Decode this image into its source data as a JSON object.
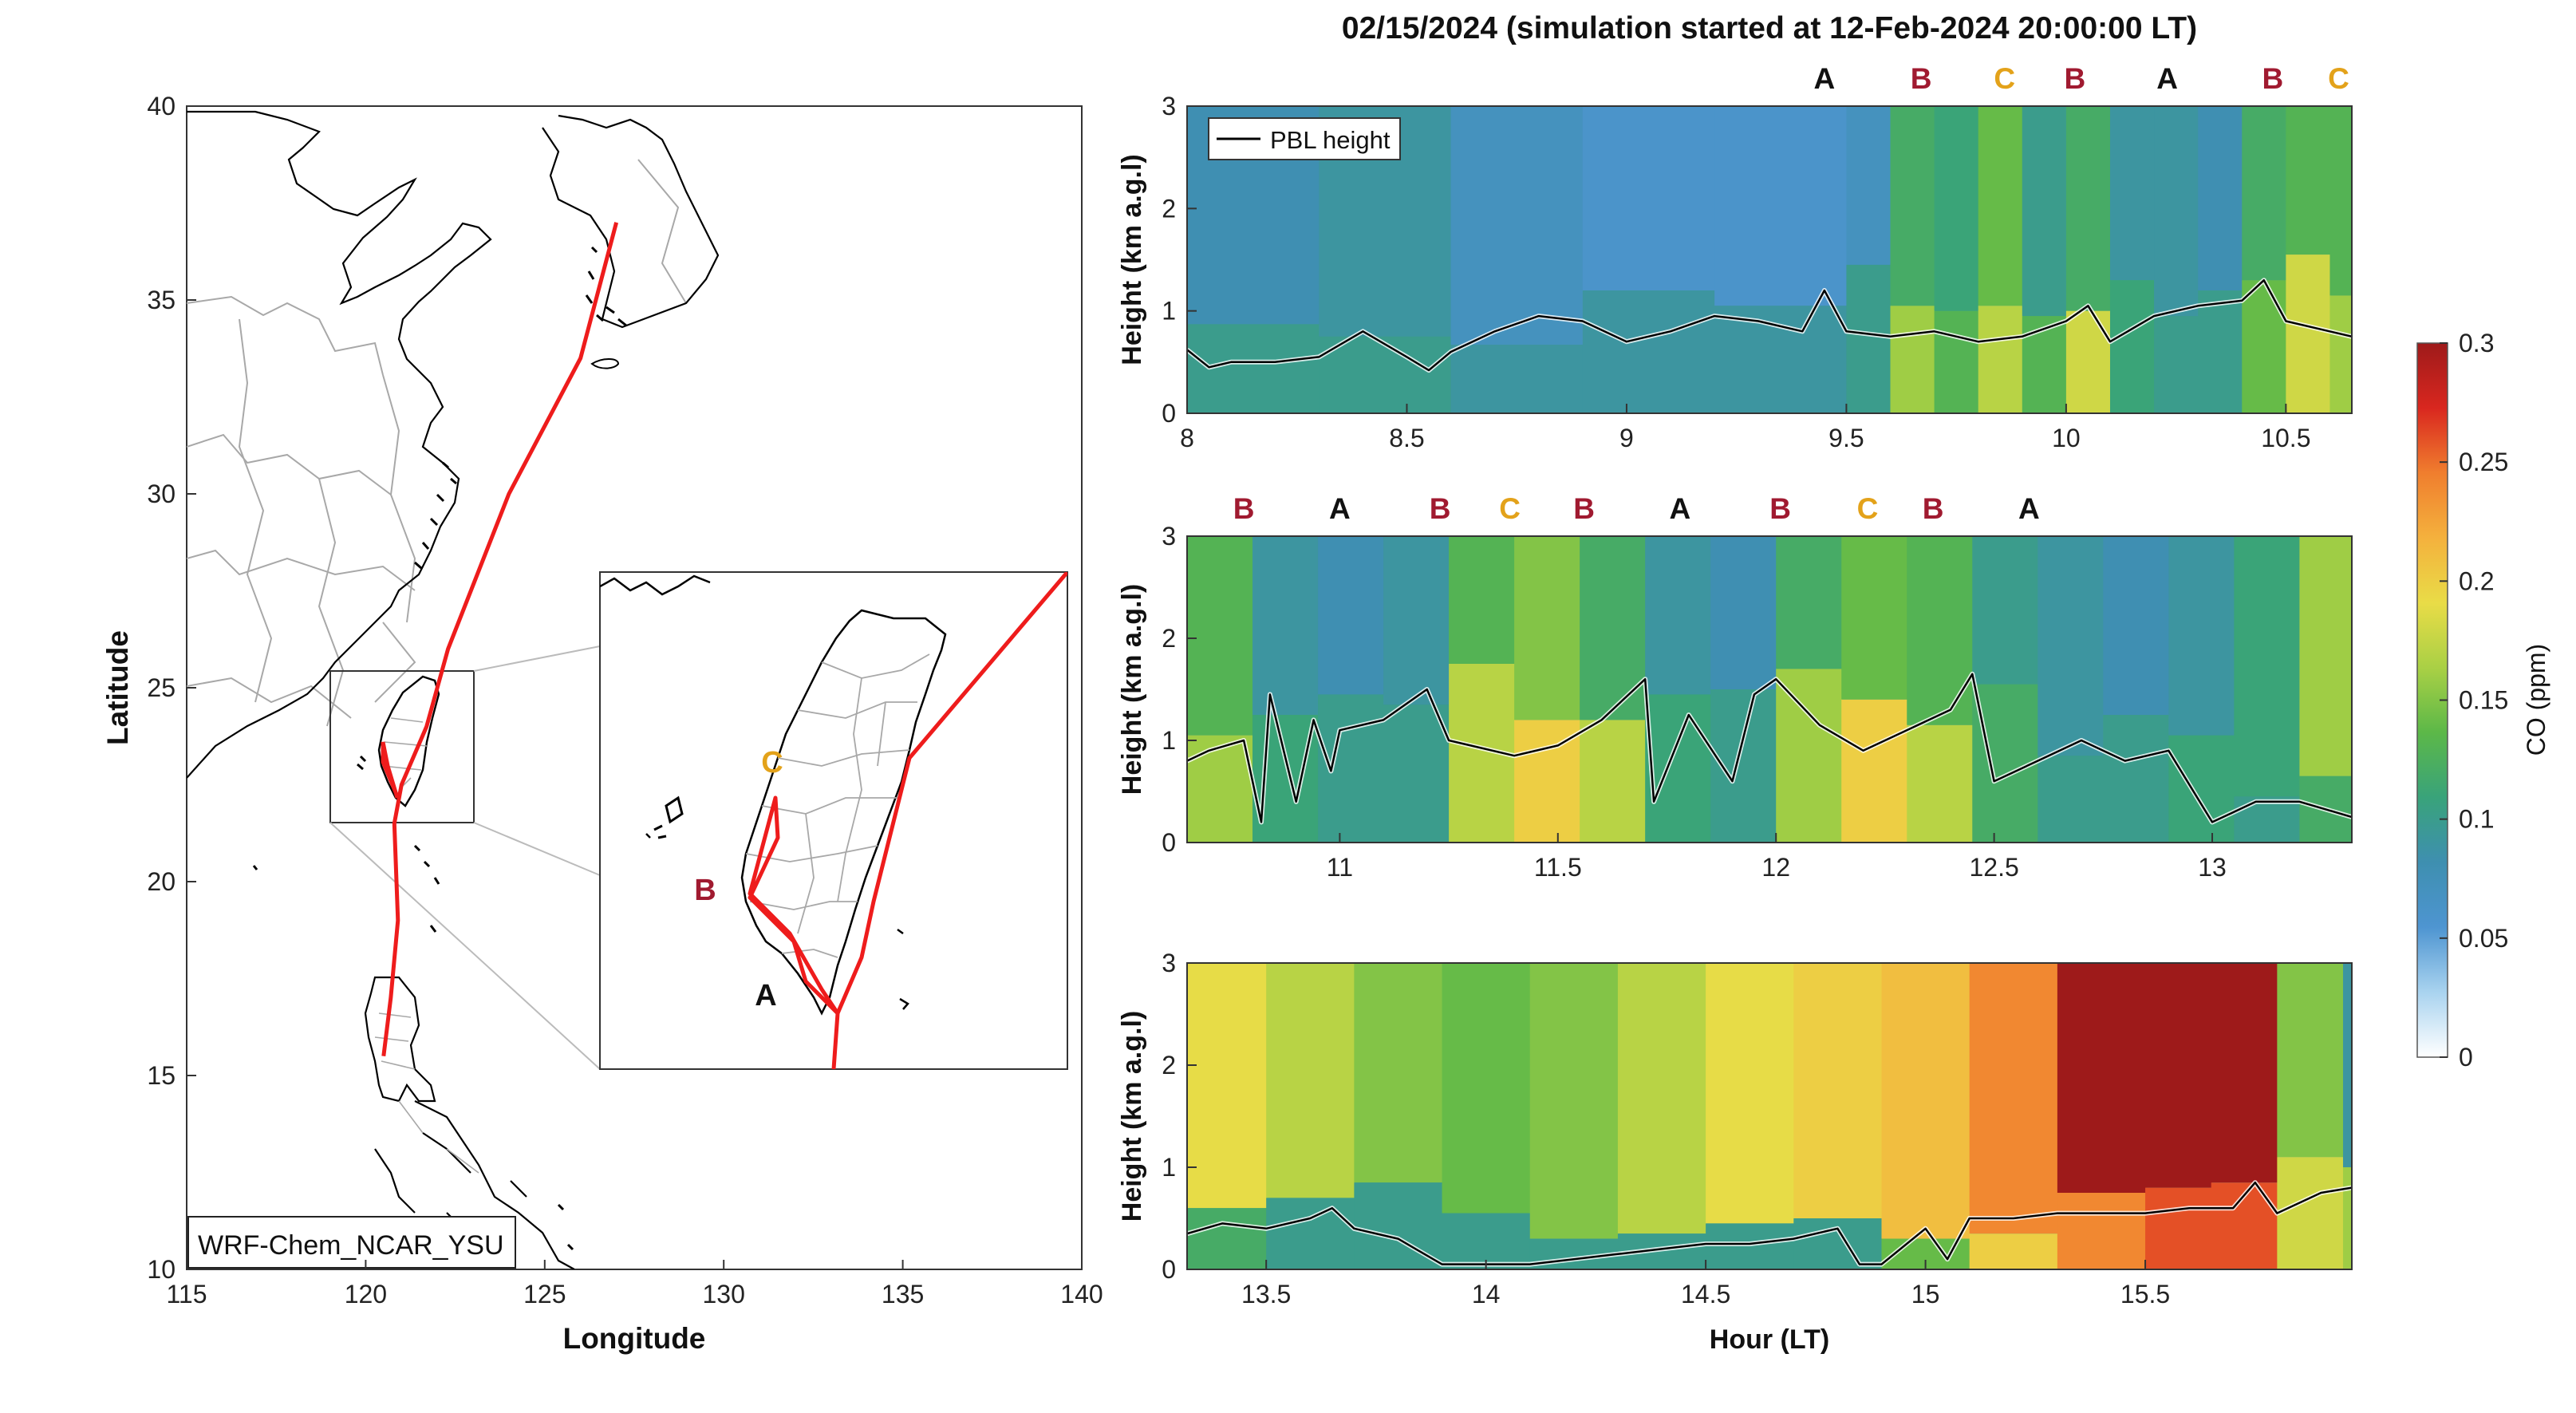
{
  "figure_title": "02/15/2024 (simulation started at 12-Feb-2024 20:00:00 LT)",
  "colors": {
    "track": "#ee1c1c",
    "label_A": "#111111",
    "label_B": "#a01a30",
    "label_C": "#e3a21a",
    "coast": "#000000",
    "province": "#a8a8a8",
    "colormap": [
      "#ffffff",
      "#a9d3ef",
      "#4e95d1",
      "#3e8fb0",
      "#39a37a",
      "#5cb848",
      "#a9d045",
      "#e9dc47",
      "#f4b13d",
      "#f07e2e",
      "#d9271f",
      "#9e1a1a"
    ]
  },
  "chart_data": [
    {
      "type": "map",
      "xlabel": "Longitude",
      "ylabel": "Latitude",
      "xlim": [
        115,
        140
      ],
      "ylim": [
        10,
        40
      ],
      "xticks": [
        "115",
        "120",
        "125",
        "130",
        "135",
        "140"
      ],
      "yticks": [
        "10",
        "15",
        "20",
        "25",
        "30",
        "35",
        "40"
      ],
      "model_label": "WRF-Chem_NCAR_YSU",
      "track": {
        "lon": [
          127.0,
          126.0,
          124.0,
          122.3,
          121.7,
          121.0,
          120.8,
          120.9,
          120.7,
          120.5
        ],
        "lat": [
          37.0,
          33.5,
          30.0,
          26.0,
          24.0,
          22.5,
          21.5,
          19.0,
          17.0,
          15.5
        ]
      },
      "inset_box_lon": [
        119.0,
        123.0
      ],
      "inset_box_lat": [
        21.5,
        25.7
      ],
      "inset_labels": [
        "C",
        "B",
        "A"
      ]
    },
    {
      "type": "heatmap",
      "ylabel": "Height (km a.g.l)",
      "xlim": [
        8.0,
        10.65
      ],
      "ylim": [
        0,
        3
      ],
      "xticks": [
        "8",
        "8.5",
        "9",
        "9.5",
        "10",
        "10.5"
      ],
      "yticks": [
        "0",
        "1",
        "2",
        "3"
      ],
      "legend": "PBL height",
      "segment_labels": [
        {
          "x": 9.45,
          "label": "A"
        },
        {
          "x": 9.67,
          "label": "B"
        },
        {
          "x": 9.86,
          "label": "C"
        },
        {
          "x": 10.02,
          "label": "B"
        },
        {
          "x": 10.23,
          "label": "A"
        },
        {
          "x": 10.47,
          "label": "B"
        },
        {
          "x": 10.62,
          "label": "C"
        }
      ],
      "pbl": {
        "x": [
          8.0,
          8.05,
          8.1,
          8.2,
          8.3,
          8.4,
          8.5,
          8.55,
          8.6,
          8.7,
          8.8,
          8.9,
          9.0,
          9.1,
          9.2,
          9.3,
          9.4,
          9.45,
          9.5,
          9.6,
          9.7,
          9.8,
          9.9,
          10.0,
          10.05,
          10.1,
          10.2,
          10.3,
          10.4,
          10.45,
          10.5,
          10.65
        ],
        "y": [
          0.62,
          0.45,
          0.5,
          0.5,
          0.55,
          0.8,
          0.55,
          0.42,
          0.6,
          0.8,
          0.95,
          0.9,
          0.7,
          0.8,
          0.95,
          0.9,
          0.8,
          1.2,
          0.8,
          0.75,
          0.8,
          0.7,
          0.75,
          0.9,
          1.05,
          0.7,
          0.95,
          1.05,
          1.1,
          1.3,
          0.9,
          0.75
        ]
      },
      "co_columns": {
        "x": [
          8.0,
          8.3,
          8.6,
          8.9,
          9.2,
          9.5,
          9.6,
          9.7,
          9.8,
          9.9,
          10.0,
          10.1,
          10.2,
          10.3,
          10.4,
          10.5,
          10.6
        ],
        "surface": [
          0.1,
          0.1,
          0.09,
          0.09,
          0.09,
          0.1,
          0.16,
          0.13,
          0.17,
          0.13,
          0.18,
          0.11,
          0.1,
          0.1,
          0.14,
          0.18,
          0.16
        ],
        "aloft": [
          0.08,
          0.09,
          0.07,
          0.06,
          0.06,
          0.07,
          0.12,
          0.11,
          0.14,
          0.1,
          0.12,
          0.09,
          0.09,
          0.08,
          0.12,
          0.13,
          0.13
        ]
      }
    },
    {
      "type": "heatmap",
      "ylabel": "Height (km a.g.l)",
      "xlim": [
        10.65,
        13.32
      ],
      "ylim": [
        0,
        3
      ],
      "xticks": [
        "11",
        "11.5",
        "12",
        "12.5",
        "13"
      ],
      "yticks": [
        "0",
        "1",
        "2",
        "3"
      ],
      "segment_labels": [
        {
          "x": 10.78,
          "label": "B"
        },
        {
          "x": 11.0,
          "label": "A"
        },
        {
          "x": 11.23,
          "label": "B"
        },
        {
          "x": 11.39,
          "label": "C"
        },
        {
          "x": 11.56,
          "label": "B"
        },
        {
          "x": 11.78,
          "label": "A"
        },
        {
          "x": 12.01,
          "label": "B"
        },
        {
          "x": 12.21,
          "label": "C"
        },
        {
          "x": 12.36,
          "label": "B"
        },
        {
          "x": 12.58,
          "label": "A"
        }
      ],
      "pbl": {
        "x": [
          10.65,
          10.7,
          10.78,
          10.82,
          10.84,
          10.9,
          10.94,
          10.98,
          11.0,
          11.1,
          11.2,
          11.25,
          11.3,
          11.4,
          11.5,
          11.6,
          11.7,
          11.72,
          11.8,
          11.9,
          11.95,
          12.0,
          12.1,
          12.2,
          12.3,
          12.4,
          12.45,
          12.5,
          12.6,
          12.7,
          12.8,
          12.9,
          13.0,
          13.1,
          13.2,
          13.32
        ],
        "y": [
          0.8,
          0.9,
          1.0,
          0.2,
          1.45,
          0.4,
          1.2,
          0.7,
          1.1,
          1.2,
          1.5,
          1.0,
          0.95,
          0.85,
          0.95,
          1.2,
          1.6,
          0.4,
          1.25,
          0.6,
          1.45,
          1.6,
          1.15,
          0.9,
          1.1,
          1.3,
          1.65,
          0.6,
          0.8,
          1.0,
          0.8,
          0.9,
          0.2,
          0.4,
          0.4,
          0.25
        ]
      },
      "co_columns": {
        "x": [
          10.65,
          10.8,
          10.95,
          11.1,
          11.25,
          11.4,
          11.55,
          11.7,
          11.85,
          12.0,
          12.15,
          12.3,
          12.45,
          12.6,
          12.75,
          12.9,
          13.05,
          13.2
        ],
        "surface": [
          0.16,
          0.11,
          0.1,
          0.1,
          0.17,
          0.2,
          0.17,
          0.11,
          0.1,
          0.16,
          0.2,
          0.17,
          0.12,
          0.1,
          0.1,
          0.11,
          0.1,
          0.12
        ],
        "aloft": [
          0.13,
          0.09,
          0.08,
          0.09,
          0.13,
          0.15,
          0.12,
          0.09,
          0.08,
          0.12,
          0.14,
          0.13,
          0.1,
          0.09,
          0.08,
          0.09,
          0.11,
          0.16
        ]
      }
    },
    {
      "type": "heatmap",
      "ylabel": "Height (km a.g.l)",
      "xlabel": "Hour (LT)",
      "xlim": [
        13.32,
        15.97
      ],
      "ylim": [
        0,
        3
      ],
      "xticks": [
        "13.5",
        "14",
        "14.5",
        "15",
        "15.5"
      ],
      "yticks": [
        "0",
        "1",
        "2",
        "3"
      ],
      "pbl": {
        "x": [
          13.32,
          13.4,
          13.5,
          13.6,
          13.65,
          13.7,
          13.8,
          13.9,
          14.0,
          14.1,
          14.2,
          14.3,
          14.4,
          14.5,
          14.6,
          14.7,
          14.8,
          14.85,
          14.9,
          15.0,
          15.05,
          15.1,
          15.2,
          15.3,
          15.4,
          15.5,
          15.6,
          15.7,
          15.75,
          15.8,
          15.9,
          15.97
        ],
        "y": [
          0.35,
          0.45,
          0.4,
          0.5,
          0.6,
          0.4,
          0.3,
          0.05,
          0.05,
          0.05,
          0.1,
          0.15,
          0.2,
          0.25,
          0.25,
          0.3,
          0.4,
          0.05,
          0.05,
          0.4,
          0.1,
          0.5,
          0.5,
          0.55,
          0.55,
          0.55,
          0.6,
          0.6,
          0.85,
          0.55,
          0.75,
          0.8
        ]
      },
      "co_columns": {
        "x": [
          13.32,
          13.5,
          13.7,
          13.9,
          14.1,
          14.3,
          14.5,
          14.7,
          14.9,
          15.1,
          15.3,
          15.5,
          15.65,
          15.8,
          15.95
        ],
        "surface": [
          0.12,
          0.1,
          0.1,
          0.1,
          0.1,
          0.1,
          0.1,
          0.1,
          0.14,
          0.2,
          0.24,
          0.26,
          0.26,
          0.18,
          0.16
        ],
        "aloft": [
          0.19,
          0.17,
          0.15,
          0.14,
          0.15,
          0.17,
          0.19,
          0.2,
          0.21,
          0.24,
          0.3,
          0.3,
          0.3,
          0.15,
          0.09
        ]
      }
    },
    {
      "type": "colorbar",
      "label": "CO (ppm)",
      "range": [
        0,
        0.3
      ],
      "ticks": [
        "0",
        "0.05",
        "0.1",
        "0.15",
        "0.2",
        "0.25",
        "0.3"
      ]
    }
  ]
}
